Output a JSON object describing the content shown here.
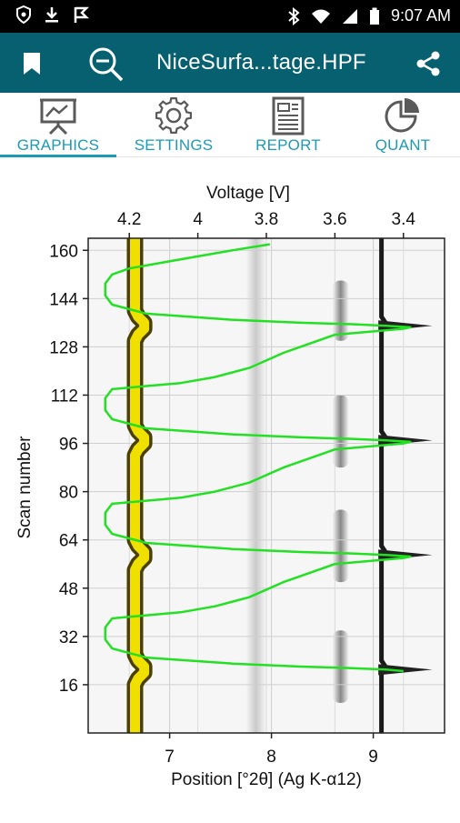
{
  "status_bar": {
    "time": "9:07 AM"
  },
  "app_bar": {
    "title": "NiceSurfa...tage.HPF",
    "actions": [
      "bookmark-icon",
      "zoom-out-icon",
      "share-icon"
    ]
  },
  "tabs": [
    {
      "label": "GRAPHICS",
      "icon": "presentation-chart-icon",
      "selected": true
    },
    {
      "label": "SETTINGS",
      "icon": "gear-icon",
      "selected": false
    },
    {
      "label": "REPORT",
      "icon": "report-icon",
      "selected": false
    },
    {
      "label": "QUANT",
      "icon": "pie-chart-icon",
      "selected": false
    }
  ],
  "colors": {
    "app_bar": "#06606f",
    "accent": "#1b9bb5",
    "voltage_line": "#22e022",
    "band_yellow": "#f0e000"
  },
  "chart_data": {
    "type": "heatmap",
    "title": "",
    "xlabel": "Position [°2θ] (Ag K-α12)",
    "x_ticks": [
      7,
      8,
      9
    ],
    "xlim": [
      6.2,
      9.7
    ],
    "x2label": "Voltage [V]",
    "x2_ticks": [
      "4.2",
      "4",
      "3.8",
      "3.6",
      "3.4"
    ],
    "x2lim": [
      4.32,
      3.28
    ],
    "ylabel": "Scan number",
    "y_ticks": [
      16,
      32,
      48,
      64,
      80,
      96,
      112,
      128,
      144,
      160
    ],
    "ylim": [
      0,
      164
    ],
    "grid": true,
    "series": [
      {
        "x": [
          3.79,
          3.9,
          4.0,
          4.1,
          4.2,
          4.25,
          4.27,
          4.27,
          4.25,
          4.15,
          3.9,
          3.7,
          3.55,
          3.45,
          3.38,
          3.4,
          3.6,
          3.75,
          3.85,
          3.95,
          4.05,
          4.15,
          4.25,
          4.27,
          4.27,
          4.25,
          4.15,
          3.9,
          3.7,
          3.55,
          3.45,
          3.38,
          3.4,
          3.6,
          3.75,
          3.85,
          3.95,
          4.05,
          4.15,
          4.25,
          4.27,
          4.27,
          4.25,
          4.15,
          3.9,
          3.7,
          3.55,
          3.45,
          3.38,
          3.4,
          3.6,
          3.75,
          3.85,
          3.95,
          4.05,
          4.15,
          4.25,
          4.27,
          4.27,
          4.25,
          4.15,
          3.9,
          3.7,
          3.55,
          3.45,
          3.4
        ],
        "y": [
          162,
          160,
          158,
          156,
          154,
          152,
          149,
          145,
          142,
          139,
          137,
          136,
          135.5,
          135,
          134.5,
          134,
          132,
          126,
          121,
          118,
          116,
          115,
          114,
          111,
          107,
          104,
          101,
          99,
          98,
          97.5,
          97,
          96.5,
          96,
          94,
          88,
          83,
          80,
          78,
          77,
          76,
          73,
          69,
          66,
          63,
          61,
          60,
          59.5,
          59,
          58.5,
          58,
          56,
          50,
          45,
          42,
          40,
          39,
          38,
          35,
          31,
          28,
          25,
          23,
          22,
          21.5,
          21,
          20.5
        ]
      }
    ]
  }
}
